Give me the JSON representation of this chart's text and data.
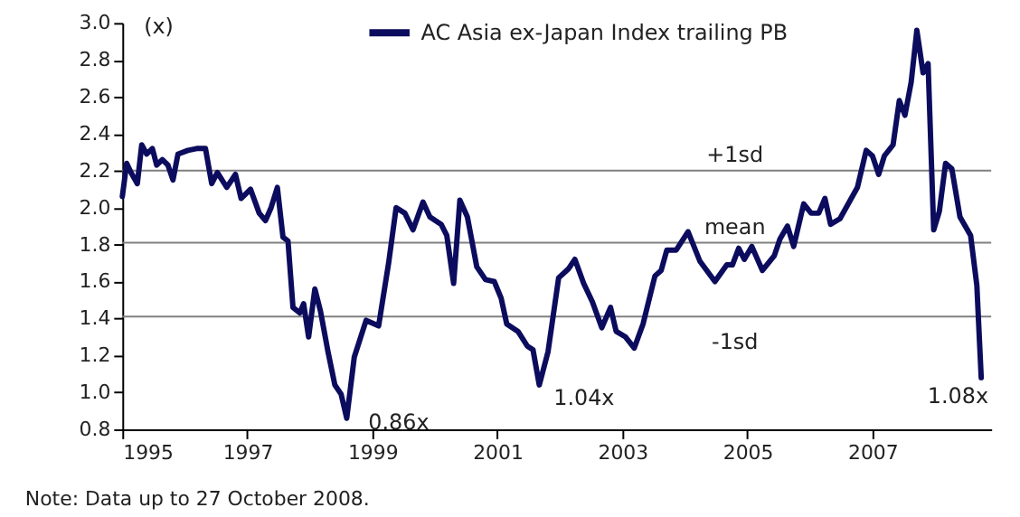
{
  "chart_data": {
    "type": "line",
    "ylabel": "(x)",
    "x": [
      1995.0,
      1995.07,
      1995.14,
      1995.24,
      1995.31,
      1995.39,
      1995.48,
      1995.55,
      1995.64,
      1995.73,
      1995.81,
      1995.89,
      1996.05,
      1996.19,
      1996.33,
      1996.43,
      1996.52,
      1996.67,
      1996.81,
      1996.9,
      1997.05,
      1997.19,
      1997.29,
      1997.38,
      1997.48,
      1997.57,
      1997.65,
      1997.73,
      1997.84,
      1997.9,
      1997.98,
      1998.08,
      1998.17,
      1998.29,
      1998.4,
      1998.5,
      1998.59,
      1998.71,
      1998.9,
      1999.1,
      1999.26,
      1999.38,
      1999.52,
      1999.65,
      1999.81,
      1999.92,
      2000.1,
      2000.19,
      2000.3,
      2000.4,
      2000.52,
      2000.67,
      2000.81,
      2000.95,
      2001.06,
      2001.15,
      2001.33,
      2001.48,
      2001.57,
      2001.67,
      2001.81,
      2001.98,
      2002.14,
      2002.24,
      2002.38,
      2002.52,
      2002.67,
      2002.81,
      2002.9,
      2003.05,
      2003.19,
      2003.33,
      2003.52,
      2003.62,
      2003.71,
      2003.86,
      2004.05,
      2004.24,
      2004.48,
      2004.67,
      2004.76,
      2004.86,
      2004.95,
      2005.07,
      2005.24,
      2005.43,
      2005.52,
      2005.64,
      2005.74,
      2005.9,
      2006.02,
      2006.14,
      2006.24,
      2006.33,
      2006.48,
      2006.76,
      2006.9,
      2007.0,
      2007.1,
      2007.19,
      2007.33,
      2007.43,
      2007.52,
      2007.62,
      2007.71,
      2007.81,
      2007.89,
      2007.98,
      2008.07,
      2008.17,
      2008.27,
      2008.4,
      2008.57,
      2008.67,
      2008.74
    ],
    "series": [
      {
        "name": "AC Asia ex-Japan Index trailing PB",
        "color": "#0c0c5e",
        "values": [
          2.06,
          2.24,
          2.19,
          2.13,
          2.34,
          2.29,
          2.32,
          2.23,
          2.26,
          2.23,
          2.15,
          2.29,
          2.31,
          2.32,
          2.32,
          2.13,
          2.19,
          2.11,
          2.18,
          2.05,
          2.1,
          1.97,
          1.93,
          2.0,
          2.11,
          1.84,
          1.82,
          1.46,
          1.43,
          1.48,
          1.3,
          1.56,
          1.44,
          1.22,
          1.04,
          0.99,
          0.86,
          1.19,
          1.39,
          1.36,
          1.7,
          2.0,
          1.97,
          1.88,
          2.03,
          1.95,
          1.91,
          1.85,
          1.59,
          2.04,
          1.95,
          1.68,
          1.61,
          1.6,
          1.51,
          1.37,
          1.33,
          1.25,
          1.23,
          1.04,
          1.22,
          1.62,
          1.67,
          1.72,
          1.59,
          1.49,
          1.35,
          1.46,
          1.33,
          1.3,
          1.24,
          1.37,
          1.63,
          1.66,
          1.77,
          1.77,
          1.87,
          1.71,
          1.6,
          1.69,
          1.69,
          1.78,
          1.72,
          1.79,
          1.66,
          1.74,
          1.83,
          1.9,
          1.79,
          2.02,
          1.97,
          1.97,
          2.05,
          1.91,
          1.94,
          2.11,
          2.31,
          2.28,
          2.18,
          2.28,
          2.34,
          2.58,
          2.5,
          2.68,
          2.96,
          2.73,
          2.78,
          1.88,
          1.98,
          2.24,
          2.21,
          1.95,
          1.85,
          1.58,
          1.08
        ]
      }
    ],
    "xlim": [
      1995,
      2008.9
    ],
    "xticks": [
      1995,
      1997,
      1999,
      2001,
      2003,
      2005,
      2007
    ],
    "ylim": [
      0.8,
      3.0
    ],
    "yticks": [
      0.8,
      {
        "value": 1,
        "label": "1.0"
      },
      1.2,
      1.4,
      1.6,
      1.8,
      {
        "value": 2,
        "label": "2.0"
      },
      2.2,
      2.4,
      2.6,
      2.8,
      {
        "value": 3,
        "label": "3.0"
      }
    ],
    "ref_lines": [
      {
        "axis": "y",
        "value": 2.2,
        "label": "+1sd"
      },
      {
        "axis": "y",
        "value": 1.81,
        "label": "mean"
      },
      {
        "axis": "y",
        "value": 1.41,
        "label": "-1sd"
      }
    ],
    "annotations": [
      {
        "text": "0.86x",
        "x": 1998.59,
        "y": 0.86
      },
      {
        "text": "1.04x",
        "x": 2001.67,
        "y": 1.04
      },
      {
        "text": "1.08x",
        "x": 2008.74,
        "y": 1.08
      },
      "Note: Data up to 27 October 2008."
    ],
    "grid": false,
    "legend": "top",
    "marker": "none",
    "line_style": "solid"
  }
}
